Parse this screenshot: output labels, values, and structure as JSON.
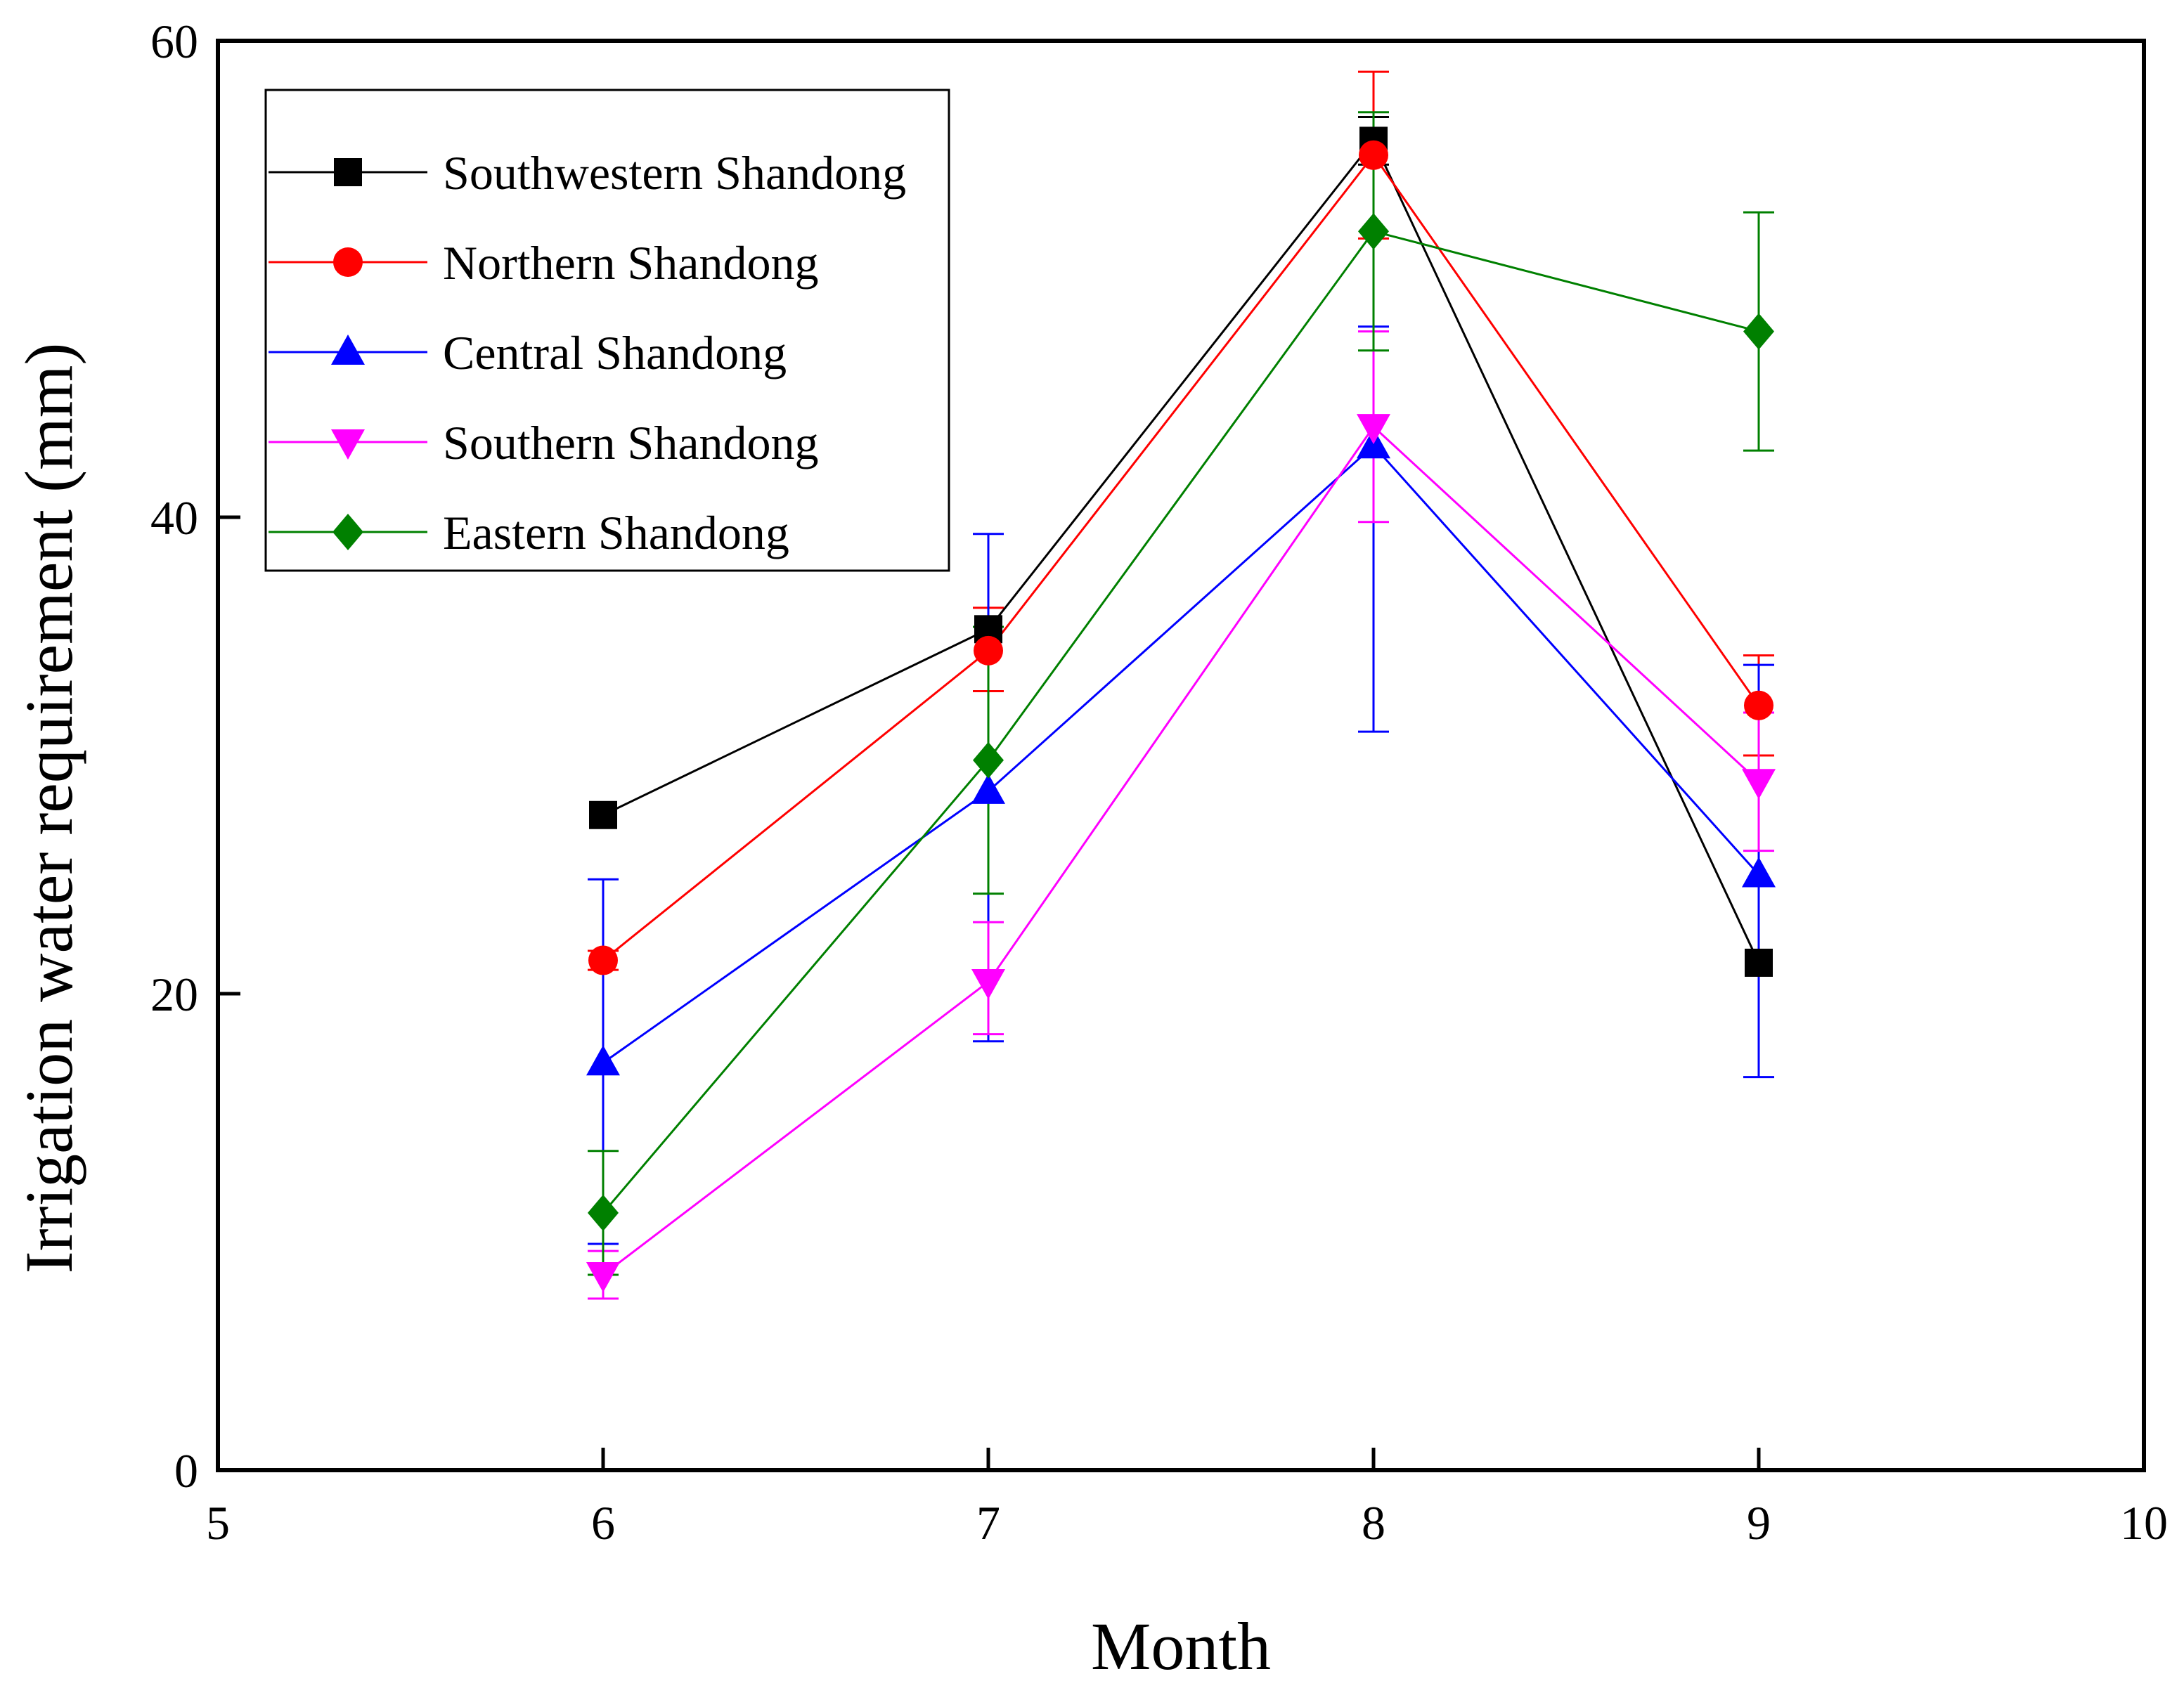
{
  "chart_data": {
    "type": "line",
    "title": "",
    "xlabel": "Month",
    "ylabel": "Irrigation water requirement (mm)",
    "xlim": [
      5,
      10
    ],
    "ylim": [
      0,
      60
    ],
    "x_ticks": [
      5,
      6,
      7,
      8,
      9,
      10
    ],
    "y_ticks": [
      0,
      20,
      40,
      60
    ],
    "grid": false,
    "legend_position": "top-left",
    "x": [
      6,
      7,
      8,
      9
    ],
    "series": [
      {
        "name": "Southwestern Shandong",
        "color": "#000000",
        "marker": "square",
        "values": [
          27.5,
          35.3,
          55.8,
          21.3
        ],
        "error_low": [
          27.5,
          35.3,
          54.8,
          21.3
        ],
        "error_high": [
          27.5,
          35.3,
          56.8,
          21.3
        ]
      },
      {
        "name": "Northern Shandong",
        "color": "#ff0000",
        "marker": "circle",
        "values": [
          21.4,
          34.4,
          55.2,
          32.1
        ],
        "error_low": [
          21.0,
          32.7,
          51.7,
          30.0
        ],
        "error_high": [
          21.8,
          36.2,
          58.7,
          34.2
        ]
      },
      {
        "name": "Central Shandong",
        "color": "#0000ff",
        "marker": "triangle-up",
        "values": [
          17.1,
          28.5,
          43.0,
          25.0
        ],
        "error_low": [
          9.5,
          18.0,
          31.0,
          16.5
        ],
        "error_high": [
          24.8,
          39.3,
          48.0,
          33.8
        ]
      },
      {
        "name": "Southern Shandong",
        "color": "#ff00ff",
        "marker": "triangle-down",
        "values": [
          8.2,
          20.5,
          43.8,
          28.9
        ],
        "error_low": [
          7.2,
          18.3,
          39.8,
          26.0
        ],
        "error_high": [
          9.2,
          23.0,
          47.8,
          31.8
        ]
      },
      {
        "name": "Eastern Shandong",
        "color": "#008000",
        "marker": "diamond",
        "values": [
          10.8,
          29.8,
          52.0,
          47.8
        ],
        "error_low": [
          8.2,
          24.2,
          47.0,
          42.8
        ],
        "error_high": [
          13.4,
          35.4,
          57.0,
          52.8
        ]
      }
    ]
  }
}
